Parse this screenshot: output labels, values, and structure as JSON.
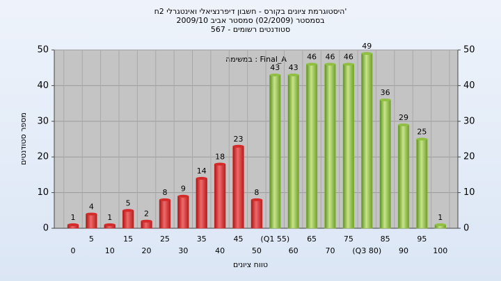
{
  "chart_data": {
    "type": "bar",
    "title": [
      "היסטוגרמת ציונים בקורס - חשבון דיפרנציאלי ואינטגרלי 2ח'",
      "בסמסטר  (02/2009)  סמסטר אביב 2009/10",
      "סטודנטים רשומים - 567"
    ],
    "annotation": "במשימה : Final_A",
    "x_label": "טווח ציונים",
    "y_label": "מספר סטודנטים",
    "categories": [
      "0",
      "5",
      "10",
      "15",
      "20",
      "25",
      "30",
      "35",
      "40",
      "45",
      "50",
      "(Q1 55)",
      "60",
      "65",
      "70",
      "75",
      "(Q3 80)",
      "85",
      "90",
      "95",
      "100"
    ],
    "values": [
      1,
      4,
      1,
      5,
      2,
      8,
      9,
      14,
      18,
      23,
      8,
      43,
      43,
      46,
      46,
      46,
      49,
      36,
      29,
      25,
      1
    ],
    "colors": [
      "#d42a2a",
      "#d42a2a",
      "#d42a2a",
      "#d42a2a",
      "#d42a2a",
      "#d42a2a",
      "#d42a2a",
      "#d42a2a",
      "#d42a2a",
      "#d42a2a",
      "#d42a2a",
      "#8fc041",
      "#8fc041",
      "#8fc041",
      "#8fc041",
      "#8fc041",
      "#8fc041",
      "#8fc041",
      "#8fc041",
      "#8fc041",
      "#8fc041"
    ],
    "ylim": [
      0,
      50
    ],
    "yticks": [
      0,
      10,
      20,
      30,
      40,
      50
    ],
    "grid": true
  }
}
